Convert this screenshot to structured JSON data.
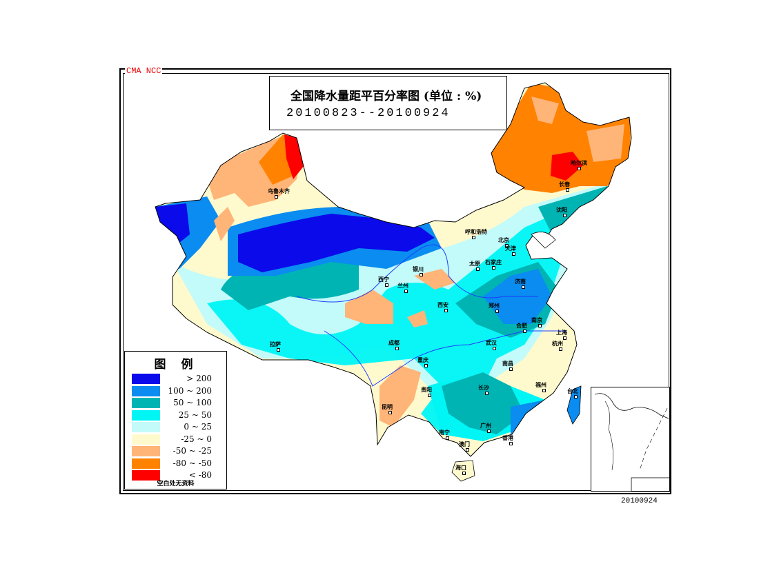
{
  "header": {
    "org_label": "CMA  NCC",
    "title": "全国降水量距平百分率图 (单位 : %)",
    "date_range": "20100823--20100924"
  },
  "legend": {
    "title": "图例",
    "items": [
      {
        "label": "> 200",
        "color": "#0a0aeb"
      },
      {
        "label": "100 ~ 200",
        "color": "#0a8cf0"
      },
      {
        "label": "50 ~ 100",
        "color": "#00b4b4"
      },
      {
        "label": "25 ~ 50",
        "color": "#00f5f5"
      },
      {
        "label": "0 ~ 25",
        "color": "#c3fafa"
      },
      {
        "label": "-25 ~ 0",
        "color": "#fffacd"
      },
      {
        "label": "-50 ~ -25",
        "color": "#ffb478"
      },
      {
        "label": "-80 ~ -50",
        "color": "#ff8200"
      },
      {
        "label": "< -80",
        "color": "#ff0000"
      }
    ],
    "note": "空白处无资料"
  },
  "footer": {
    "date": "20100924"
  },
  "cities": [
    "乌鲁木齐",
    "哈尔滨",
    "长春",
    "沈阳",
    "呼和浩特",
    "北京",
    "天津",
    "太原",
    "石家庄",
    "银川",
    "西宁",
    "兰州",
    "济南",
    "郑州",
    "西安",
    "合肥",
    "南京",
    "上海",
    "杭州",
    "武汉",
    "成都",
    "重庆",
    "拉萨",
    "长沙",
    "南昌",
    "福州",
    "贵阳",
    "昆明",
    "台北",
    "南宁",
    "广州",
    "澳门",
    "香港",
    "海口"
  ]
}
